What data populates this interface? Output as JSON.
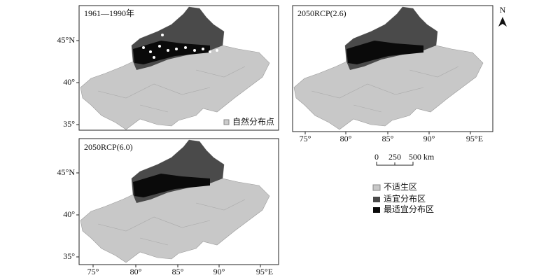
{
  "panels": [
    {
      "title": "1961—1990年",
      "y_labels": [
        "45°N",
        "40°",
        "35°"
      ],
      "legend": "自然分布点"
    },
    {
      "title": "2050RCP(2.6)",
      "x_labels": [
        "75°",
        "80°",
        "85°",
        "90°",
        "95°E"
      ]
    },
    {
      "title": "2050RCP(6.0)",
      "y_labels": [
        "45°N",
        "40°",
        "35°"
      ],
      "x_labels": [
        "75°",
        "80°",
        "85°",
        "90°",
        "95°E"
      ]
    }
  ],
  "north_arrow": "N",
  "scale_bar": {
    "labels": [
      "0",
      "250",
      "500 km"
    ]
  },
  "legend": [
    "不适生区",
    "适宜分布区",
    "最适宜分布区"
  ]
}
